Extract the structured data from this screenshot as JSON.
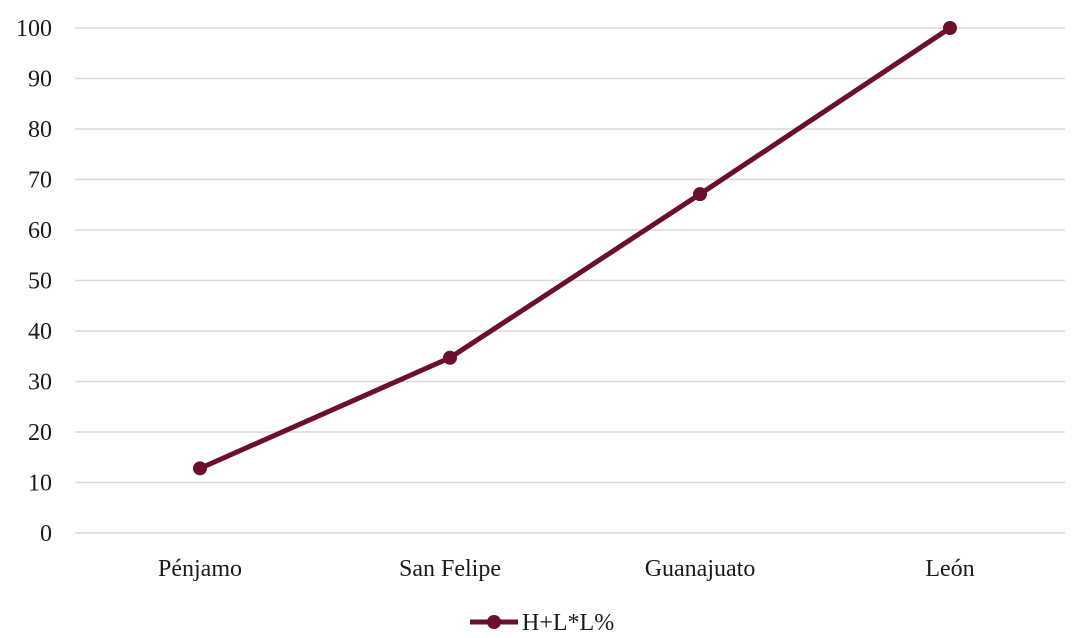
{
  "chart_data": {
    "type": "line",
    "categories": [
      "Pénjamo",
      "San Felipe",
      "Guanajuato",
      "León"
    ],
    "series": [
      {
        "name": "H+L*L%",
        "values": [
          12.8,
          34.7,
          67.1,
          100
        ],
        "color": "#6b0f2b"
      }
    ],
    "ylim": [
      0,
      100
    ],
    "yticks": [
      "0",
      "10",
      "20",
      "30",
      "40",
      "50",
      "60",
      "70",
      "80",
      "90",
      "100"
    ],
    "grid": true,
    "legend": "bottom-center",
    "title": "",
    "xlabel": "",
    "ylabel": ""
  }
}
